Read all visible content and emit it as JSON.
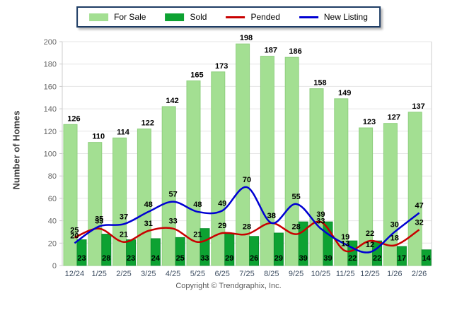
{
  "legend": {
    "items": [
      {
        "id": "for-sale",
        "label": "For Sale",
        "swatch": "rect",
        "color": "#a3df92"
      },
      {
        "id": "sold",
        "label": "Sold",
        "swatch": "rect",
        "color": "#0da232"
      },
      {
        "id": "pended",
        "label": "Pended",
        "swatch": "line",
        "color": "#c80000"
      },
      {
        "id": "new-listing",
        "label": "New Listing",
        "swatch": "line",
        "color": "#0000d2"
      }
    ],
    "border_color": "#1e3c64"
  },
  "footer": {
    "copyright": "Copyright © Trendgraphix, Inc."
  },
  "chart_data": {
    "type": "bar",
    "subtype": "grouped bars with smoothed line overlays",
    "title": "",
    "xlabel": "",
    "ylabel": "Number of Homes",
    "ylim": [
      0,
      200
    ],
    "ytick_step": 20,
    "grid": true,
    "legend_position": "top",
    "categories": [
      "12/24",
      "1/25",
      "2/25",
      "3/25",
      "4/25",
      "5/25",
      "6/25",
      "7/25",
      "8/25",
      "9/25",
      "10/25",
      "11/25",
      "12/25",
      "1/26",
      "2/26"
    ],
    "series": [
      {
        "name": "For Sale",
        "type": "bar",
        "color": "#a3df92",
        "edge_color": "#8fcf7f",
        "values": [
          126,
          110,
          114,
          122,
          142,
          165,
          173,
          198,
          187,
          186,
          158,
          149,
          123,
          127,
          137
        ]
      },
      {
        "name": "Sold",
        "type": "bar",
        "color": "#0da232",
        "edge_color": "#0a8c2a",
        "values": [
          23,
          28,
          23,
          24,
          25,
          33,
          29,
          26,
          29,
          39,
          39,
          22,
          22,
          17,
          14
        ]
      },
      {
        "name": "Pended",
        "type": "line",
        "color": "#c80000",
        "values": [
          25,
          33,
          21,
          31,
          33,
          21,
          29,
          28,
          38,
          28,
          39,
          13,
          22,
          18,
          32
        ]
      },
      {
        "name": "New Listing",
        "type": "line",
        "color": "#0000d2",
        "values": [
          20,
          35,
          37,
          48,
          57,
          48,
          49,
          70,
          38,
          55,
          33,
          19,
          12,
          30,
          47
        ]
      }
    ],
    "label_color": "#000000",
    "ytick_color": "#666666",
    "xtick_color": "#3f4f63",
    "gridline_color": "#e6e6e6",
    "axis_line_color": "#cccccc"
  }
}
